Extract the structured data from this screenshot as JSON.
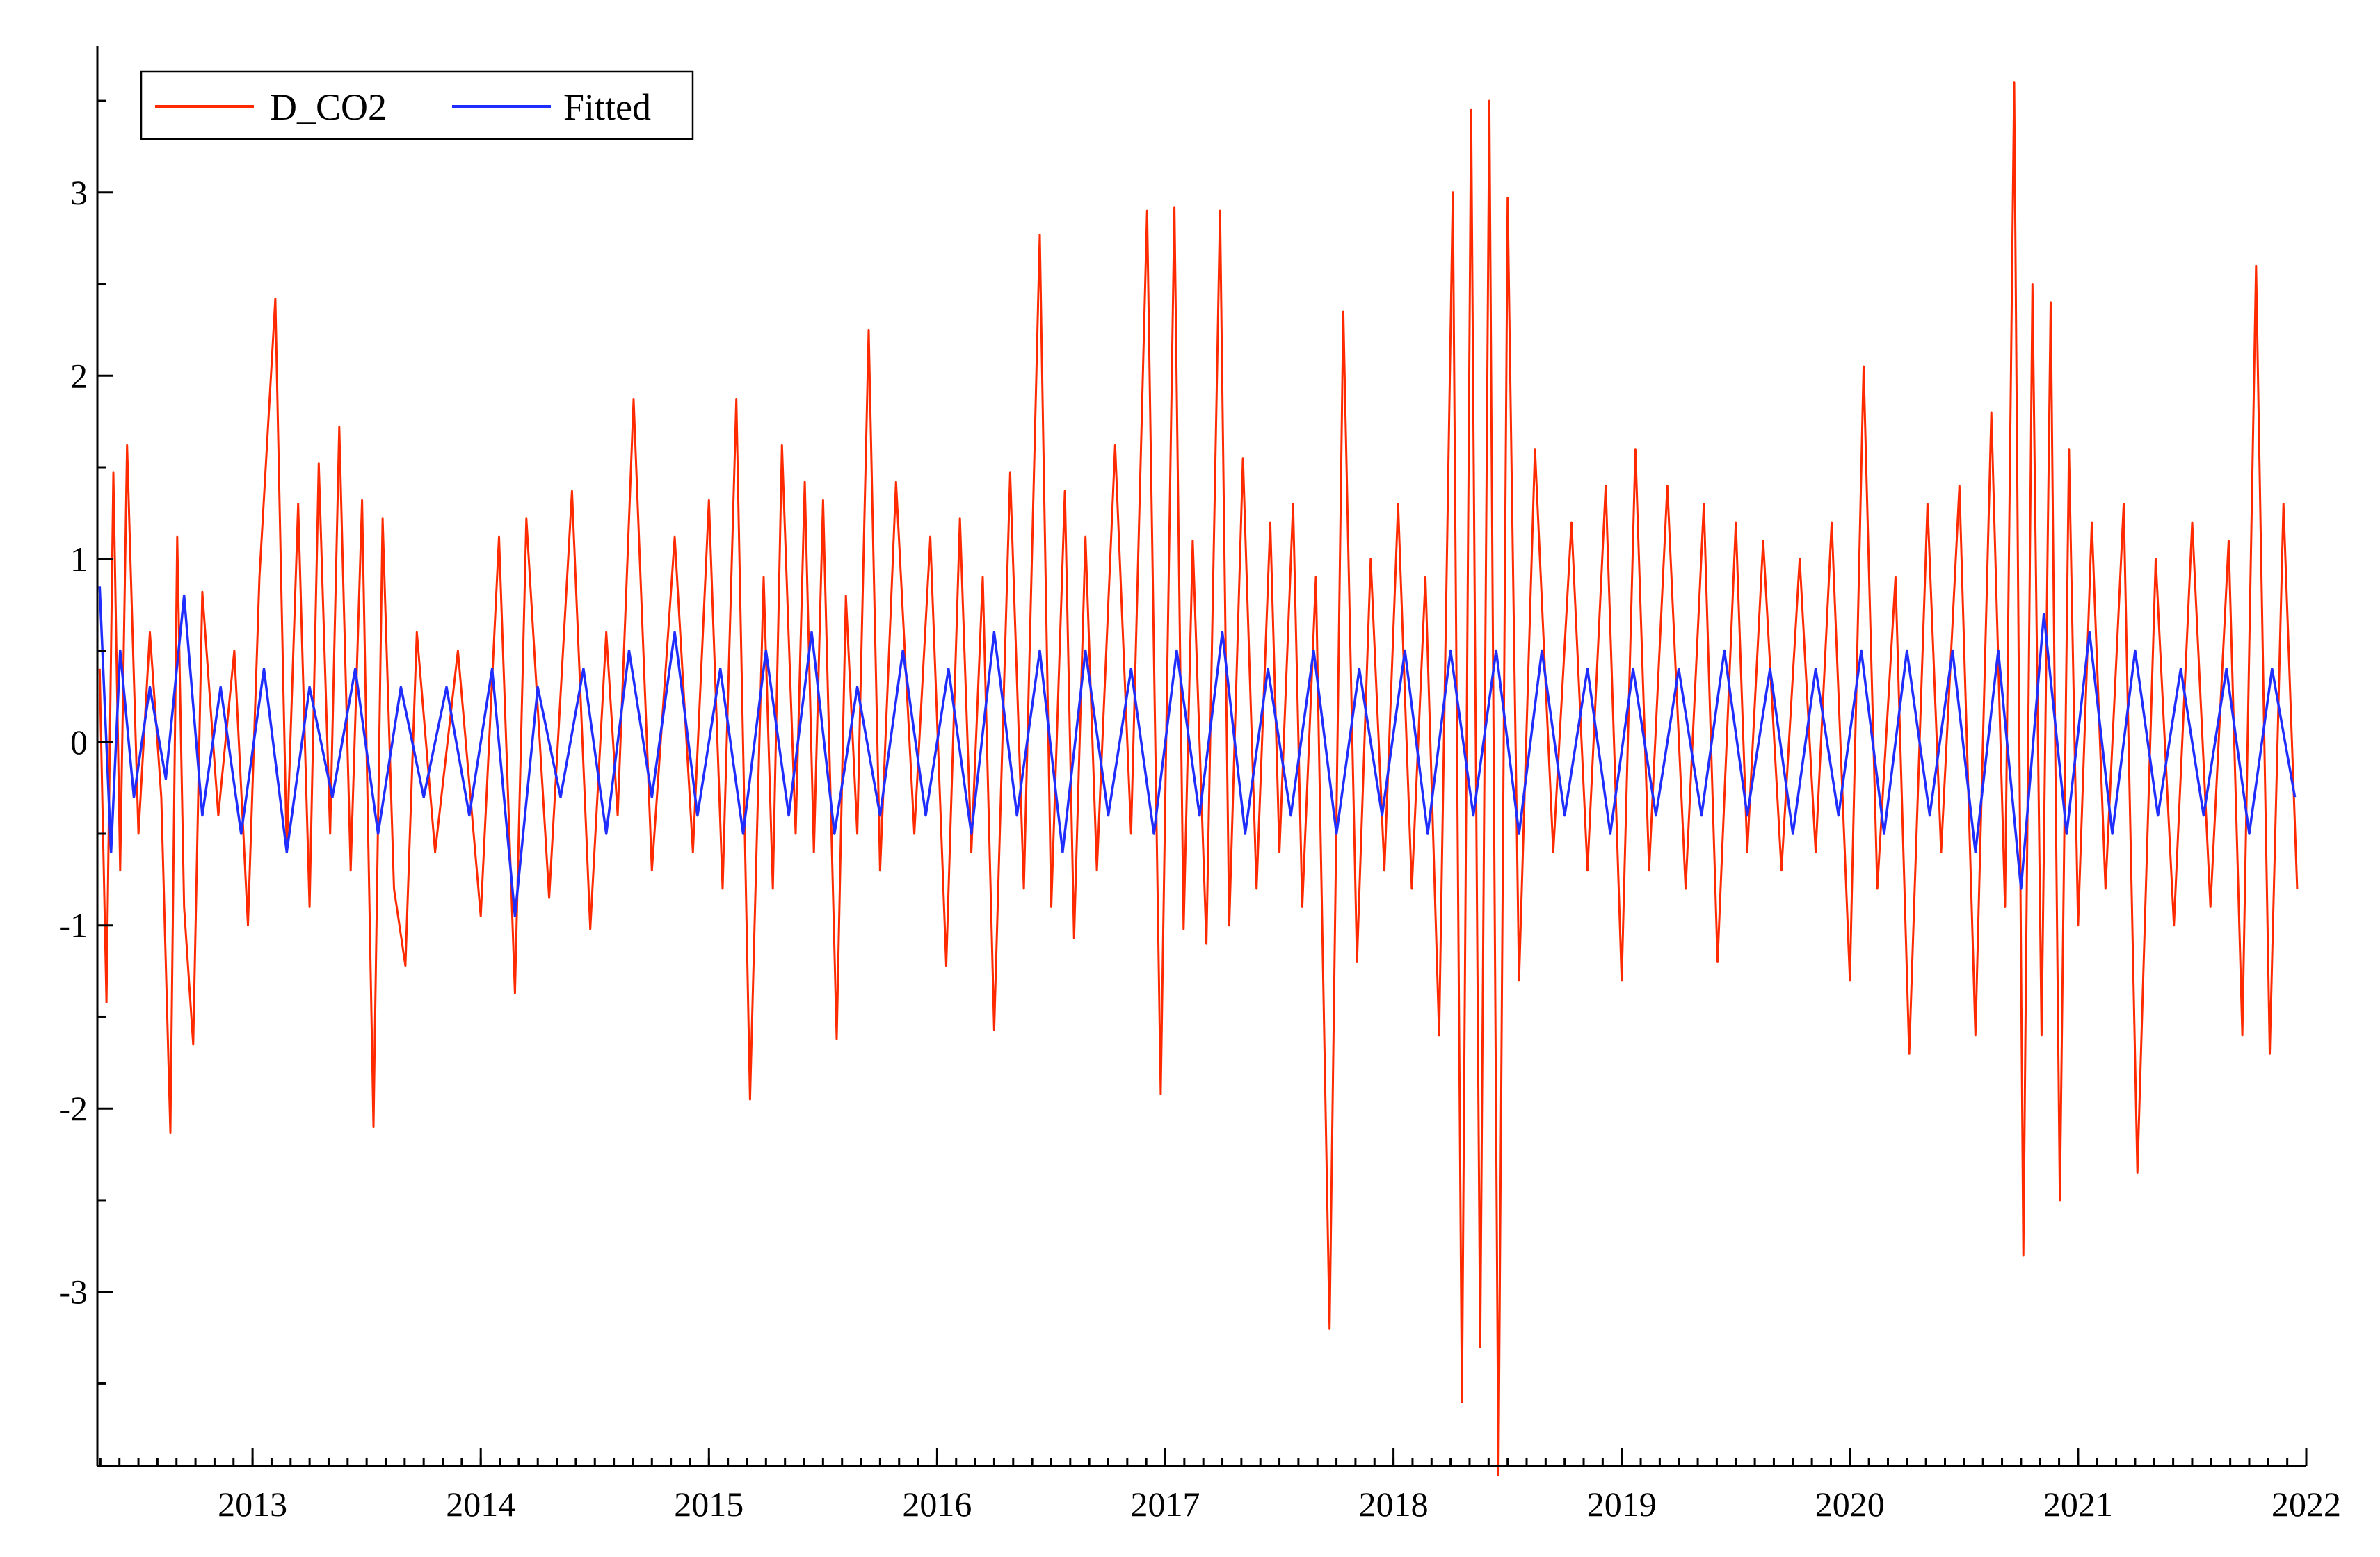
{
  "chart_data": {
    "type": "line",
    "title": "",
    "xlabel": "",
    "ylabel": "",
    "xlim": [
      2012.32,
      2022.0
    ],
    "ylim": [
      -3.95,
      3.8
    ],
    "x_ticks": [
      "2013",
      "2014",
      "2015",
      "2016",
      "2017",
      "2018",
      "2019",
      "2020",
      "2021",
      "2022"
    ],
    "y_ticks": [
      "3",
      "2",
      "1",
      "0",
      "-1",
      "-2",
      "-3"
    ],
    "legend": {
      "position": "top-left",
      "entries": [
        "D_CO2",
        "Fitted"
      ]
    },
    "grid": false,
    "series": [
      {
        "name": "D_CO2",
        "color": "#ff2a00",
        "points": [
          [
            2012.33,
            0.4
          ],
          [
            2012.36,
            -1.42
          ],
          [
            2012.39,
            1.47
          ],
          [
            2012.42,
            -0.7
          ],
          [
            2012.45,
            1.62
          ],
          [
            2012.5,
            -0.5
          ],
          [
            2012.55,
            0.6
          ],
          [
            2012.6,
            -0.3
          ],
          [
            2012.64,
            -2.13
          ],
          [
            2012.67,
            1.12
          ],
          [
            2012.7,
            -0.9
          ],
          [
            2012.74,
            -1.65
          ],
          [
            2012.78,
            0.82
          ],
          [
            2012.85,
            -0.4
          ],
          [
            2012.92,
            0.5
          ],
          [
            2012.98,
            -1.0
          ],
          [
            2013.03,
            0.9
          ],
          [
            2013.1,
            2.42
          ],
          [
            2013.15,
            -0.6
          ],
          [
            2013.2,
            1.3
          ],
          [
            2013.25,
            -0.9
          ],
          [
            2013.29,
            1.52
          ],
          [
            2013.34,
            -0.5
          ],
          [
            2013.38,
            1.72
          ],
          [
            2013.43,
            -0.7
          ],
          [
            2013.48,
            1.32
          ],
          [
            2013.53,
            -2.1
          ],
          [
            2013.57,
            1.22
          ],
          [
            2013.62,
            -0.8
          ],
          [
            2013.67,
            -1.22
          ],
          [
            2013.72,
            0.6
          ],
          [
            2013.8,
            -0.6
          ],
          [
            2013.9,
            0.5
          ],
          [
            2014.0,
            -0.95
          ],
          [
            2014.08,
            1.12
          ],
          [
            2014.15,
            -1.37
          ],
          [
            2014.2,
            1.22
          ],
          [
            2014.3,
            -0.85
          ],
          [
            2014.4,
            1.37
          ],
          [
            2014.48,
            -1.02
          ],
          [
            2014.55,
            0.6
          ],
          [
            2014.6,
            -0.4
          ],
          [
            2014.67,
            1.87
          ],
          [
            2014.75,
            -0.7
          ],
          [
            2014.85,
            1.12
          ],
          [
            2014.93,
            -0.6
          ],
          [
            2015.0,
            1.32
          ],
          [
            2015.06,
            -0.8
          ],
          [
            2015.12,
            1.87
          ],
          [
            2015.18,
            -1.95
          ],
          [
            2015.24,
            0.9
          ],
          [
            2015.28,
            -0.8
          ],
          [
            2015.32,
            1.62
          ],
          [
            2015.38,
            -0.5
          ],
          [
            2015.42,
            1.42
          ],
          [
            2015.46,
            -0.6
          ],
          [
            2015.5,
            1.32
          ],
          [
            2015.56,
            -1.62
          ],
          [
            2015.6,
            0.8
          ],
          [
            2015.65,
            -0.5
          ],
          [
            2015.7,
            2.25
          ],
          [
            2015.75,
            -0.7
          ],
          [
            2015.82,
            1.42
          ],
          [
            2015.9,
            -0.5
          ],
          [
            2015.97,
            1.12
          ],
          [
            2016.04,
            -1.22
          ],
          [
            2016.1,
            1.22
          ],
          [
            2016.15,
            -0.6
          ],
          [
            2016.2,
            0.9
          ],
          [
            2016.25,
            -1.57
          ],
          [
            2016.32,
            1.47
          ],
          [
            2016.38,
            -0.8
          ],
          [
            2016.45,
            2.77
          ],
          [
            2016.5,
            -0.9
          ],
          [
            2016.56,
            1.37
          ],
          [
            2016.6,
            -1.07
          ],
          [
            2016.65,
            1.12
          ],
          [
            2016.7,
            -0.7
          ],
          [
            2016.78,
            1.62
          ],
          [
            2016.85,
            -0.5
          ],
          [
            2016.92,
            2.9
          ],
          [
            2016.98,
            -1.92
          ],
          [
            2017.04,
            2.92
          ],
          [
            2017.08,
            -1.02
          ],
          [
            2017.12,
            1.1
          ],
          [
            2017.18,
            -1.1
          ],
          [
            2017.24,
            2.9
          ],
          [
            2017.28,
            -1.0
          ],
          [
            2017.34,
            1.55
          ],
          [
            2017.4,
            -0.8
          ],
          [
            2017.46,
            1.2
          ],
          [
            2017.5,
            -0.6
          ],
          [
            2017.56,
            1.3
          ],
          [
            2017.6,
            -0.9
          ],
          [
            2017.66,
            0.9
          ],
          [
            2017.72,
            -3.2
          ],
          [
            2017.78,
            2.35
          ],
          [
            2017.84,
            -1.2
          ],
          [
            2017.9,
            1.0
          ],
          [
            2017.96,
            -0.7
          ],
          [
            2018.02,
            1.3
          ],
          [
            2018.08,
            -0.8
          ],
          [
            2018.14,
            0.9
          ],
          [
            2018.2,
            -1.6
          ],
          [
            2018.26,
            3.0
          ],
          [
            2018.3,
            -3.6
          ],
          [
            2018.34,
            3.45
          ],
          [
            2018.38,
            -3.3
          ],
          [
            2018.42,
            3.5
          ],
          [
            2018.46,
            -4.0
          ],
          [
            2018.5,
            2.97
          ],
          [
            2018.55,
            -1.3
          ],
          [
            2018.62,
            1.6
          ],
          [
            2018.7,
            -0.6
          ],
          [
            2018.78,
            1.2
          ],
          [
            2018.85,
            -0.7
          ],
          [
            2018.93,
            1.4
          ],
          [
            2019.0,
            -1.3
          ],
          [
            2019.06,
            1.6
          ],
          [
            2019.12,
            -0.7
          ],
          [
            2019.2,
            1.4
          ],
          [
            2019.28,
            -0.8
          ],
          [
            2019.36,
            1.3
          ],
          [
            2019.42,
            -1.2
          ],
          [
            2019.5,
            1.2
          ],
          [
            2019.55,
            -0.6
          ],
          [
            2019.62,
            1.1
          ],
          [
            2019.7,
            -0.7
          ],
          [
            2019.78,
            1.0
          ],
          [
            2019.85,
            -0.6
          ],
          [
            2019.92,
            1.2
          ],
          [
            2020.0,
            -1.3
          ],
          [
            2020.06,
            2.05
          ],
          [
            2020.12,
            -0.8
          ],
          [
            2020.2,
            0.9
          ],
          [
            2020.26,
            -1.7
          ],
          [
            2020.34,
            1.3
          ],
          [
            2020.4,
            -0.6
          ],
          [
            2020.48,
            1.4
          ],
          [
            2020.55,
            -1.6
          ],
          [
            2020.62,
            1.8
          ],
          [
            2020.68,
            -0.9
          ],
          [
            2020.72,
            3.6
          ],
          [
            2020.76,
            -2.8
          ],
          [
            2020.8,
            2.5
          ],
          [
            2020.84,
            -1.6
          ],
          [
            2020.88,
            2.4
          ],
          [
            2020.92,
            -2.5
          ],
          [
            2020.96,
            1.6
          ],
          [
            2021.0,
            -1.0
          ],
          [
            2021.06,
            1.2
          ],
          [
            2021.12,
            -0.8
          ],
          [
            2021.2,
            1.3
          ],
          [
            2021.26,
            -2.35
          ],
          [
            2021.34,
            1.0
          ],
          [
            2021.42,
            -1.0
          ],
          [
            2021.5,
            1.2
          ],
          [
            2021.58,
            -0.9
          ],
          [
            2021.66,
            1.1
          ],
          [
            2021.72,
            -1.6
          ],
          [
            2021.78,
            2.6
          ],
          [
            2021.84,
            -1.7
          ],
          [
            2021.9,
            1.3
          ],
          [
            2021.96,
            -0.8
          ]
        ]
      },
      {
        "name": "Fitted",
        "color": "#1f2eff",
        "points": [
          [
            2012.33,
            0.85
          ],
          [
            2012.38,
            -0.6
          ],
          [
            2012.42,
            0.5
          ],
          [
            2012.48,
            -0.3
          ],
          [
            2012.55,
            0.3
          ],
          [
            2012.62,
            -0.2
          ],
          [
            2012.7,
            0.8
          ],
          [
            2012.78,
            -0.4
          ],
          [
            2012.86,
            0.3
          ],
          [
            2012.95,
            -0.5
          ],
          [
            2013.05,
            0.4
          ],
          [
            2013.15,
            -0.6
          ],
          [
            2013.25,
            0.3
          ],
          [
            2013.35,
            -0.3
          ],
          [
            2013.45,
            0.4
          ],
          [
            2013.55,
            -0.5
          ],
          [
            2013.65,
            0.3
          ],
          [
            2013.75,
            -0.3
          ],
          [
            2013.85,
            0.3
          ],
          [
            2013.95,
            -0.4
          ],
          [
            2014.05,
            0.4
          ],
          [
            2014.15,
            -0.95
          ],
          [
            2014.25,
            0.3
          ],
          [
            2014.35,
            -0.3
          ],
          [
            2014.45,
            0.4
          ],
          [
            2014.55,
            -0.5
          ],
          [
            2014.65,
            0.5
          ],
          [
            2014.75,
            -0.3
          ],
          [
            2014.85,
            0.6
          ],
          [
            2014.95,
            -0.4
          ],
          [
            2015.05,
            0.4
          ],
          [
            2015.15,
            -0.5
          ],
          [
            2015.25,
            0.5
          ],
          [
            2015.35,
            -0.4
          ],
          [
            2015.45,
            0.6
          ],
          [
            2015.55,
            -0.5
          ],
          [
            2015.65,
            0.3
          ],
          [
            2015.75,
            -0.4
          ],
          [
            2015.85,
            0.5
          ],
          [
            2015.95,
            -0.4
          ],
          [
            2016.05,
            0.4
          ],
          [
            2016.15,
            -0.5
          ],
          [
            2016.25,
            0.6
          ],
          [
            2016.35,
            -0.4
          ],
          [
            2016.45,
            0.5
          ],
          [
            2016.55,
            -0.6
          ],
          [
            2016.65,
            0.5
          ],
          [
            2016.75,
            -0.4
          ],
          [
            2016.85,
            0.4
          ],
          [
            2016.95,
            -0.5
          ],
          [
            2017.05,
            0.5
          ],
          [
            2017.15,
            -0.4
          ],
          [
            2017.25,
            0.6
          ],
          [
            2017.35,
            -0.5
          ],
          [
            2017.45,
            0.4
          ],
          [
            2017.55,
            -0.4
          ],
          [
            2017.65,
            0.5
          ],
          [
            2017.75,
            -0.5
          ],
          [
            2017.85,
            0.4
          ],
          [
            2017.95,
            -0.4
          ],
          [
            2018.05,
            0.5
          ],
          [
            2018.15,
            -0.5
          ],
          [
            2018.25,
            0.5
          ],
          [
            2018.35,
            -0.4
          ],
          [
            2018.45,
            0.5
          ],
          [
            2018.55,
            -0.5
          ],
          [
            2018.65,
            0.5
          ],
          [
            2018.75,
            -0.4
          ],
          [
            2018.85,
            0.4
          ],
          [
            2018.95,
            -0.5
          ],
          [
            2019.05,
            0.4
          ],
          [
            2019.15,
            -0.4
          ],
          [
            2019.25,
            0.4
          ],
          [
            2019.35,
            -0.4
          ],
          [
            2019.45,
            0.5
          ],
          [
            2019.55,
            -0.4
          ],
          [
            2019.65,
            0.4
          ],
          [
            2019.75,
            -0.5
          ],
          [
            2019.85,
            0.4
          ],
          [
            2019.95,
            -0.4
          ],
          [
            2020.05,
            0.5
          ],
          [
            2020.15,
            -0.5
          ],
          [
            2020.25,
            0.5
          ],
          [
            2020.35,
            -0.4
          ],
          [
            2020.45,
            0.5
          ],
          [
            2020.55,
            -0.6
          ],
          [
            2020.65,
            0.5
          ],
          [
            2020.75,
            -0.8
          ],
          [
            2020.85,
            0.7
          ],
          [
            2020.95,
            -0.5
          ],
          [
            2021.05,
            0.6
          ],
          [
            2021.15,
            -0.5
          ],
          [
            2021.25,
            0.5
          ],
          [
            2021.35,
            -0.4
          ],
          [
            2021.45,
            0.4
          ],
          [
            2021.55,
            -0.4
          ],
          [
            2021.65,
            0.4
          ],
          [
            2021.75,
            -0.5
          ],
          [
            2021.85,
            0.4
          ],
          [
            2021.95,
            -0.3
          ]
        ]
      }
    ]
  }
}
